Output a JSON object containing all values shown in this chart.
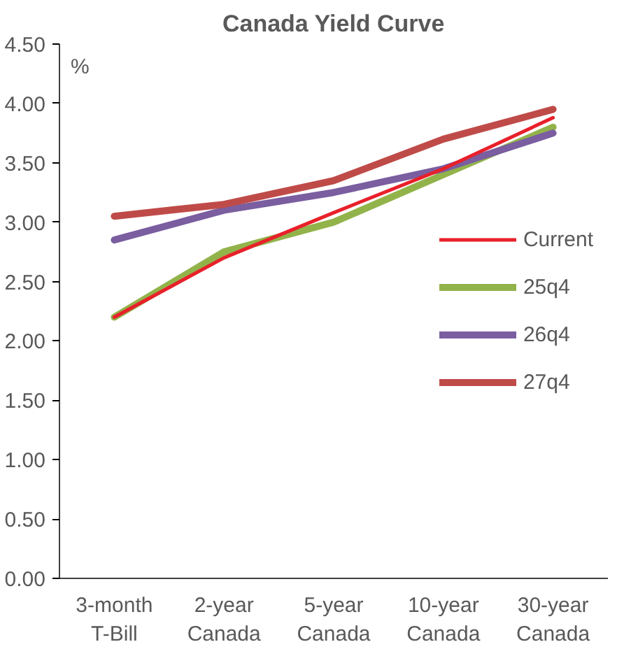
{
  "chart_data": {
    "type": "line",
    "title": "Canada Yield Curve",
    "ylabel": "%",
    "categories": [
      "3-month\nT-Bill",
      "2-year\nCanada",
      "5-year\nCanada",
      "10-year\nCanada",
      "30-year\nCanada"
    ],
    "series": [
      {
        "name": "Current",
        "color": "#e8202a",
        "values": [
          2.2,
          2.7,
          3.08,
          3.45,
          3.88
        ]
      },
      {
        "name": "25q4",
        "color": "#92b34a",
        "values": [
          2.2,
          2.75,
          3.0,
          3.4,
          3.8
        ]
      },
      {
        "name": "26q4",
        "color": "#7a5ea0",
        "values": [
          2.85,
          3.1,
          3.25,
          3.45,
          3.75
        ]
      },
      {
        "name": "27q4",
        "color": "#bf4b49",
        "values": [
          3.05,
          3.15,
          3.35,
          3.7,
          3.95
        ]
      }
    ],
    "ylim": [
      0,
      4.5
    ],
    "yticks": [
      {
        "value": 0,
        "label": "0.00"
      },
      {
        "value": 0.5,
        "label": "0.50"
      },
      {
        "value": 1,
        "label": "1.00"
      },
      {
        "value": 1.5,
        "label": "1.50"
      },
      {
        "value": 2,
        "label": "2.00"
      },
      {
        "value": 2.5,
        "label": "2.50"
      },
      {
        "value": 3,
        "label": "3.00"
      },
      {
        "value": 3.5,
        "label": "3.50"
      },
      {
        "value": 4,
        "label": "4.00"
      },
      {
        "value": 4.5,
        "label": "4.50"
      }
    ],
    "grid": false,
    "legend": "right",
    "line_style": "solid",
    "marker": "none"
  }
}
